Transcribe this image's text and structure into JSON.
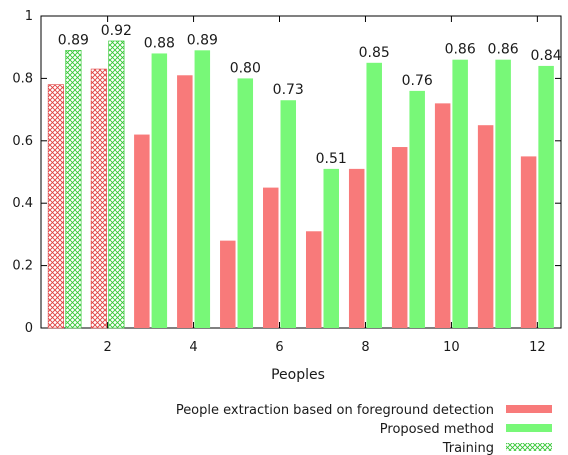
{
  "chart_data": {
    "type": "bar",
    "xlabel": "Peoples",
    "ylabel": "",
    "ylim": [
      0,
      1
    ],
    "yticks": [
      0,
      0.2,
      0.4,
      0.6,
      0.8,
      1
    ],
    "yticklabels": [
      "0",
      "0.2",
      "0.4",
      "0.6",
      "0.8",
      "1"
    ],
    "xticks": [
      2,
      4,
      6,
      8,
      10,
      12
    ],
    "categories": [
      1,
      2,
      3,
      4,
      5,
      6,
      7,
      8,
      9,
      10,
      11,
      12
    ],
    "training_groups": [
      1,
      2
    ],
    "series": [
      {
        "name": "People extraction based on foreground detection",
        "color": "#f87a7a",
        "values": [
          0.78,
          0.83,
          0.62,
          0.81,
          0.28,
          0.45,
          0.31,
          0.51,
          0.58,
          0.72,
          0.65,
          0.55
        ]
      },
      {
        "name": "Proposed method",
        "color": "#78f878",
        "values": [
          0.89,
          0.92,
          0.88,
          0.89,
          0.8,
          0.73,
          0.51,
          0.85,
          0.76,
          0.86,
          0.86,
          0.84
        ],
        "data_labels": [
          "0.89",
          "0.92",
          "0.88",
          "0.89",
          "0.80",
          "0.73",
          "0.51",
          "0.85",
          "0.76",
          "0.86",
          "0.86",
          "0.84"
        ]
      }
    ],
    "legend": {
      "position": "bottom-right",
      "entries": [
        {
          "label": "People extraction based on foreground detection",
          "style": "solid",
          "color": "#f87a7a"
        },
        {
          "label": "Proposed method",
          "style": "solid",
          "color": "#78f878"
        },
        {
          "label": "Training",
          "style": "hatched",
          "color": "#78f878"
        }
      ]
    },
    "grid": false
  }
}
